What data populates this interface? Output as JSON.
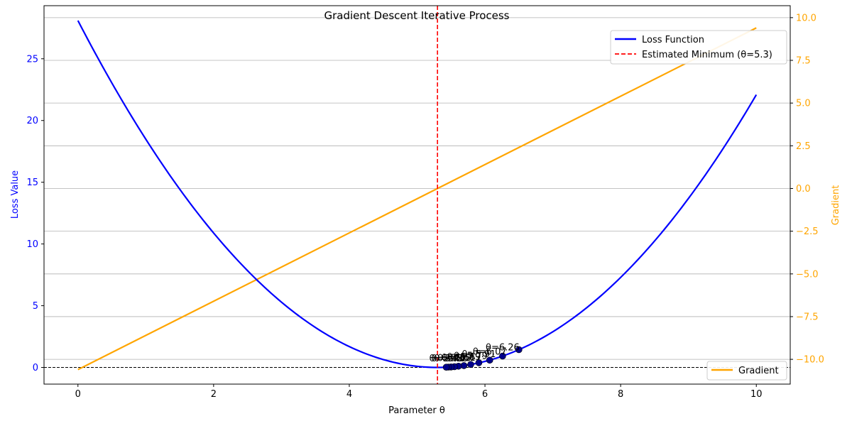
{
  "chart_data": {
    "type": "line",
    "title": "Gradient Descent Iterative Process",
    "xlabel": "Parameter θ",
    "ylabel_left": "Loss Value",
    "ylabel_right": "Gradient",
    "xlim": [
      -0.5,
      10.5
    ],
    "ylim_left": [
      -1.35,
      29.3
    ],
    "ylim_right": [
      -11.45,
      10.7
    ],
    "x_ticks": [
      "0",
      "2",
      "4",
      "6",
      "8",
      "10"
    ],
    "y_ticks_left": [
      "0",
      "5",
      "10",
      "15",
      "20",
      "25"
    ],
    "y_ticks_right": [
      "−10.0",
      "−7.5",
      "−5.0",
      "−2.5",
      "0.0",
      "2.5",
      "5.0",
      "7.5",
      "10.0"
    ],
    "grid": "right-axis horizontal",
    "colors": {
      "loss": "#0000ff",
      "gradient": "#ffa500",
      "minimum": "#ff0000",
      "points": "#00008b",
      "left_axis_text": "#0000ff",
      "right_axis_text": "#ffa500"
    },
    "loss_function": {
      "name": "Loss Function",
      "minimum_theta": 5.3,
      "coefficient": 1.0,
      "x": [
        0,
        0.5,
        1,
        1.5,
        2,
        2.5,
        3,
        3.5,
        4,
        4.5,
        5,
        5.3,
        5.5,
        6,
        6.5,
        7,
        7.5,
        8,
        8.5,
        9,
        9.5,
        10
      ],
      "y": [
        28.09,
        23.04,
        18.49,
        14.44,
        10.89,
        7.84,
        5.29,
        3.24,
        1.69,
        0.64,
        0.09,
        0,
        0.04,
        0.49,
        1.44,
        2.89,
        4.84,
        7.29,
        10.24,
        13.69,
        17.64,
        22.09
      ]
    },
    "gradient": {
      "name": "Gradient",
      "x": [
        0,
        10
      ],
      "y": [
        -10.6,
        9.4
      ]
    },
    "minimum_line": {
      "label": "Estimated Minimum (θ=5.3)",
      "x": 5.3
    },
    "iterations": {
      "theta": [
        6.5,
        6.26,
        6.07,
        5.91,
        5.79,
        5.69,
        5.61,
        5.55,
        5.5,
        5.46,
        5.43
      ],
      "loss": [
        1.44,
        0.92,
        0.59,
        0.38,
        0.24,
        0.15,
        0.1,
        0.06,
        0.04,
        0.03,
        0.02
      ],
      "labels": [
        "",
        "θ=6.26",
        "θ=6.07",
        "θ=5.91",
        "θ=5.79",
        "θ=5.69",
        "θ=5.61",
        "θ=5.55",
        "θ=5.50",
        "θ=5.46",
        "θ=5.43"
      ]
    },
    "legend_main": {
      "placement": "top-right",
      "entries": [
        "Loss Function",
        "Estimated Minimum (θ=5.3)"
      ]
    },
    "legend_gradient": {
      "placement": "bottom-right",
      "entries": [
        "Gradient"
      ]
    }
  }
}
